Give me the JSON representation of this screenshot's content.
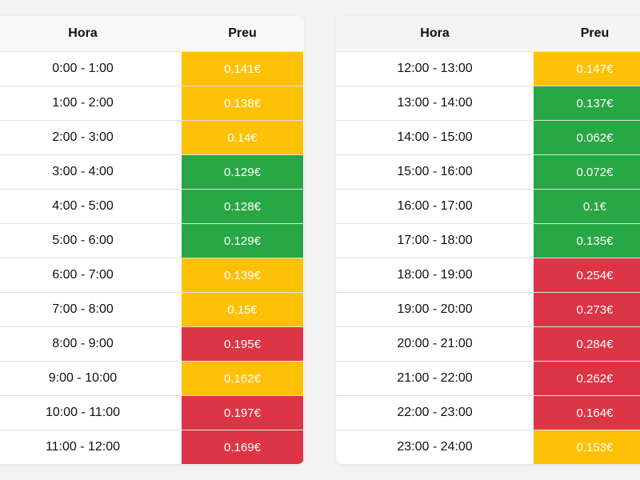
{
  "colors": {
    "green": "#28a745",
    "yellow": "#ffc107",
    "red": "#dc3545"
  },
  "headers": {
    "hora": "Hora",
    "preu": "Preu"
  },
  "tables": [
    {
      "rows": [
        {
          "hora": "0:00 - 1:00",
          "preu": "0.141€",
          "level": "yellow"
        },
        {
          "hora": "1:00 - 2:00",
          "preu": "0.138€",
          "level": "yellow"
        },
        {
          "hora": "2:00 - 3:00",
          "preu": "0.14€",
          "level": "yellow"
        },
        {
          "hora": "3:00 - 4:00",
          "preu": "0.129€",
          "level": "green"
        },
        {
          "hora": "4:00 - 5:00",
          "preu": "0.128€",
          "level": "green"
        },
        {
          "hora": "5:00 - 6:00",
          "preu": "0.129€",
          "level": "green"
        },
        {
          "hora": "6:00 - 7:00",
          "preu": "0.139€",
          "level": "yellow"
        },
        {
          "hora": "7:00 - 8:00",
          "preu": "0.15€",
          "level": "yellow"
        },
        {
          "hora": "8:00 - 9:00",
          "preu": "0.195€",
          "level": "red"
        },
        {
          "hora": "9:00 - 10:00",
          "preu": "0.162€",
          "level": "yellow"
        },
        {
          "hora": "10:00 - 11:00",
          "preu": "0.197€",
          "level": "red"
        },
        {
          "hora": "11:00 - 12:00",
          "preu": "0.169€",
          "level": "red"
        }
      ]
    },
    {
      "rows": [
        {
          "hora": "12:00 - 13:00",
          "preu": "0.147€",
          "level": "yellow"
        },
        {
          "hora": "13:00 - 14:00",
          "preu": "0.137€",
          "level": "green"
        },
        {
          "hora": "14:00 - 15:00",
          "preu": "0.062€",
          "level": "green"
        },
        {
          "hora": "15:00 - 16:00",
          "preu": "0.072€",
          "level": "green"
        },
        {
          "hora": "16:00 - 17:00",
          "preu": "0.1€",
          "level": "green"
        },
        {
          "hora": "17:00 - 18:00",
          "preu": "0.135€",
          "level": "green"
        },
        {
          "hora": "18:00 - 19:00",
          "preu": "0.254€",
          "level": "red"
        },
        {
          "hora": "19:00 - 20:00",
          "preu": "0.273€",
          "level": "red"
        },
        {
          "hora": "20:00 - 21:00",
          "preu": "0.284€",
          "level": "red"
        },
        {
          "hora": "21:00 - 22:00",
          "preu": "0.262€",
          "level": "red"
        },
        {
          "hora": "22:00 - 23:00",
          "preu": "0.164€",
          "level": "red"
        },
        {
          "hora": "23:00 - 24:00",
          "preu": "0.153€",
          "level": "yellow"
        }
      ]
    }
  ]
}
